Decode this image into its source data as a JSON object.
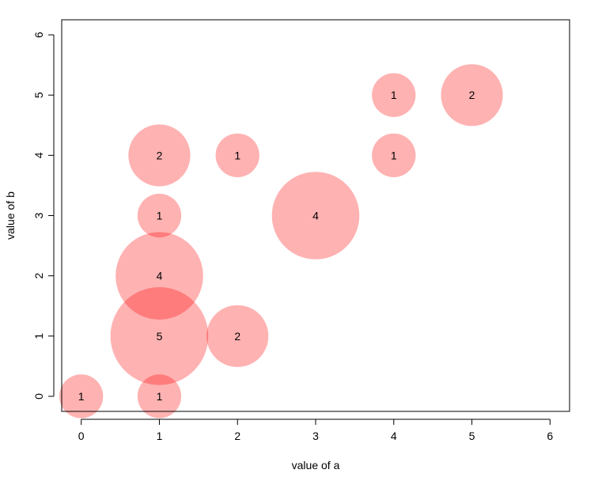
{
  "chart_data": {
    "type": "scatter",
    "title": "",
    "xlabel": "value of a",
    "ylabel": "value of b",
    "xlim": [
      -0.25,
      6.25
    ],
    "ylim": [
      -0.25,
      6.25
    ],
    "x_ticks": [
      0,
      1,
      2,
      3,
      4,
      5,
      6
    ],
    "y_ticks": [
      0,
      1,
      2,
      3,
      4,
      5,
      6
    ],
    "grid": false,
    "bubble_color": "#FF0000",
    "bubble_opacity": 0.3,
    "points": [
      {
        "x": 0,
        "y": 0,
        "count": 1
      },
      {
        "x": 1,
        "y": 0,
        "count": 1
      },
      {
        "x": 1,
        "y": 1,
        "count": 5
      },
      {
        "x": 1,
        "y": 2,
        "count": 4
      },
      {
        "x": 1,
        "y": 3,
        "count": 1
      },
      {
        "x": 1,
        "y": 4,
        "count": 2
      },
      {
        "x": 2,
        "y": 1,
        "count": 2
      },
      {
        "x": 2,
        "y": 4,
        "count": 1
      },
      {
        "x": 3,
        "y": 3,
        "count": 4
      },
      {
        "x": 4,
        "y": 4,
        "count": 1
      },
      {
        "x": 4,
        "y": 5,
        "count": 1
      },
      {
        "x": 5,
        "y": 5,
        "count": 2
      }
    ]
  }
}
